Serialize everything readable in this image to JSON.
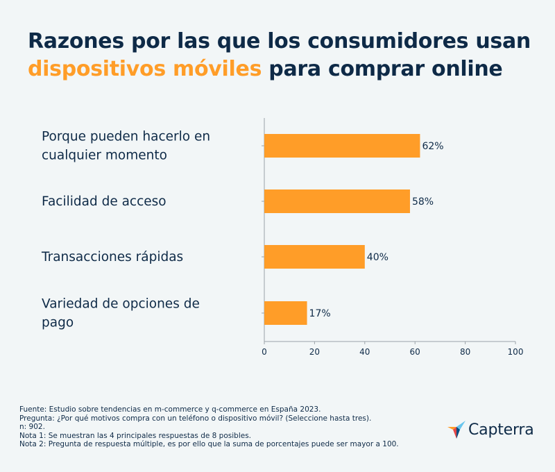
{
  "title": {
    "line1": "Razones por las que los consumidores usan",
    "highlight": "dispositivos móviles",
    "line2_rest": "para comprar online",
    "highlight_color": "#ff9d28",
    "text_color": "#0e2a47"
  },
  "chart_data": {
    "type": "bar",
    "orientation": "horizontal",
    "categories": [
      [
        "Porque pueden hacerlo en",
        "cualquier momento"
      ],
      [
        "Facilidad de acceso"
      ],
      [
        "Transacciones rápidas"
      ],
      [
        "Variedad de opciones de",
        "pago"
      ]
    ],
    "values": [
      62,
      58,
      40,
      17
    ],
    "value_labels": [
      "62%",
      "58%",
      "40%",
      "17%"
    ],
    "xlim": [
      0,
      100
    ],
    "xticks": [
      0,
      20,
      40,
      60,
      80,
      100
    ],
    "bar_color": "#ff9d28",
    "grid": false
  },
  "footer": {
    "lines": [
      "Fuente: Estudio sobre tendencias en m-commerce y q-commerce en España 2023.",
      "Pregunta: ¿Por qué motivos compra con un teléfono o dispositivo móvil? (Seleccione hasta tres).",
      "n: 902.",
      "Nota 1: Se muestran las 4 principales respuestas de 8 posibles.",
      "Nota 2: Pregunta de respuesta múltiple, es por ello que la suma de porcentajes puede ser mayor a 100."
    ]
  },
  "logo": {
    "text": "Capterra",
    "icon": "capterra-arrow-icon"
  }
}
